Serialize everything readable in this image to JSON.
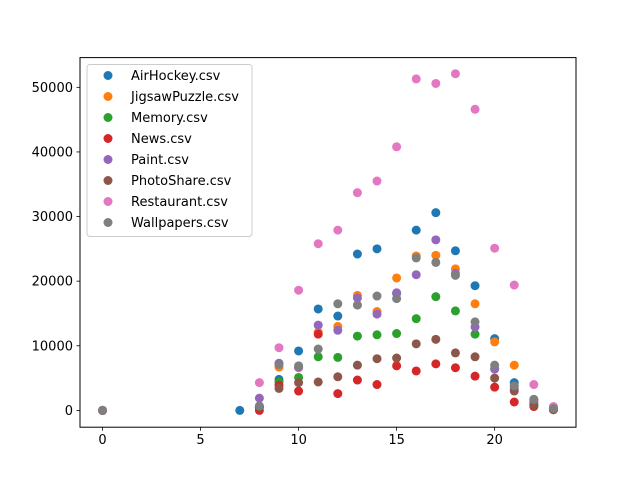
{
  "chart_data": {
    "type": "scatter",
    "title": "",
    "xlabel": "",
    "ylabel": "",
    "xlim": [
      -1.15,
      24.15
    ],
    "ylim": [
      -2600,
      54600
    ],
    "xticks": [
      0,
      5,
      10,
      15,
      20
    ],
    "yticks": [
      0,
      10000,
      20000,
      30000,
      40000,
      50000
    ],
    "grid": false,
    "legend_position": "upper-left",
    "series": [
      {
        "name": "AirHockey.csv",
        "color": "#1f77b4",
        "points": [
          [
            0,
            0
          ],
          [
            7,
            0
          ],
          [
            8,
            500
          ],
          [
            9,
            4800
          ],
          [
            10,
            9200
          ],
          [
            11,
            15700
          ],
          [
            12,
            14600
          ],
          [
            13,
            24200
          ],
          [
            14,
            25000
          ],
          [
            15,
            18100
          ],
          [
            16,
            27900
          ],
          [
            17,
            30600
          ],
          [
            18,
            24700
          ],
          [
            19,
            19300
          ],
          [
            20,
            11100
          ],
          [
            21,
            4300
          ],
          [
            22,
            1700
          ],
          [
            23,
            400
          ]
        ]
      },
      {
        "name": "JigsawPuzzle.csv",
        "color": "#ff7f0e",
        "points": [
          [
            0,
            0
          ],
          [
            8,
            600
          ],
          [
            9,
            6700
          ],
          [
            10,
            6600
          ],
          [
            11,
            12100
          ],
          [
            12,
            13000
          ],
          [
            13,
            17800
          ],
          [
            14,
            15300
          ],
          [
            15,
            20500
          ],
          [
            16,
            23900
          ],
          [
            17,
            24000
          ],
          [
            18,
            21900
          ],
          [
            19,
            16500
          ],
          [
            20,
            10600
          ],
          [
            21,
            7000
          ],
          [
            22,
            1500
          ],
          [
            23,
            400
          ]
        ]
      },
      {
        "name": "Memory.csv",
        "color": "#2ca02c",
        "points": [
          [
            0,
            0
          ],
          [
            8,
            500
          ],
          [
            9,
            4400
          ],
          [
            10,
            5100
          ],
          [
            11,
            8300
          ],
          [
            12,
            8200
          ],
          [
            13,
            11500
          ],
          [
            14,
            11700
          ],
          [
            15,
            11900
          ],
          [
            16,
            14200
          ],
          [
            17,
            17600
          ],
          [
            18,
            15400
          ],
          [
            19,
            11800
          ],
          [
            20,
            6400
          ],
          [
            21,
            3800
          ],
          [
            22,
            900
          ],
          [
            23,
            200
          ]
        ]
      },
      {
        "name": "News.csv",
        "color": "#d62728",
        "points": [
          [
            0,
            0
          ],
          [
            8,
            0
          ],
          [
            9,
            3900
          ],
          [
            10,
            3000
          ],
          [
            11,
            11800
          ],
          [
            12,
            2600
          ],
          [
            13,
            4700
          ],
          [
            14,
            4000
          ],
          [
            15,
            6900
          ],
          [
            16,
            6100
          ],
          [
            17,
            7200
          ],
          [
            18,
            6600
          ],
          [
            19,
            5300
          ],
          [
            20,
            3600
          ],
          [
            21,
            1300
          ],
          [
            22,
            600
          ],
          [
            23,
            100
          ]
        ]
      },
      {
        "name": "Paint.csv",
        "color": "#9467bd",
        "points": [
          [
            0,
            0
          ],
          [
            8,
            1900
          ],
          [
            9,
            7300
          ],
          [
            10,
            6700
          ],
          [
            11,
            13200
          ],
          [
            12,
            12400
          ],
          [
            13,
            17400
          ],
          [
            14,
            14900
          ],
          [
            15,
            18200
          ],
          [
            16,
            21000
          ],
          [
            17,
            26400
          ],
          [
            18,
            21200
          ],
          [
            19,
            12900
          ],
          [
            20,
            6400
          ],
          [
            21,
            3400
          ],
          [
            22,
            1300
          ],
          [
            23,
            300
          ]
        ]
      },
      {
        "name": "PhotoShare.csv",
        "color": "#8c564b",
        "points": [
          [
            0,
            0
          ],
          [
            8,
            500
          ],
          [
            9,
            3400
          ],
          [
            10,
            4300
          ],
          [
            11,
            4400
          ],
          [
            12,
            5200
          ],
          [
            13,
            7000
          ],
          [
            14,
            8000
          ],
          [
            15,
            8100
          ],
          [
            16,
            10300
          ],
          [
            17,
            11000
          ],
          [
            18,
            8900
          ],
          [
            19,
            8300
          ],
          [
            20,
            5000
          ],
          [
            21,
            3000
          ],
          [
            22,
            800
          ],
          [
            23,
            100
          ]
        ]
      },
      {
        "name": "Restaurant.csv",
        "color": "#e377c2",
        "points": [
          [
            0,
            0
          ],
          [
            8,
            4300
          ],
          [
            9,
            9700
          ],
          [
            10,
            18600
          ],
          [
            11,
            25800
          ],
          [
            12,
            27900
          ],
          [
            13,
            33700
          ],
          [
            14,
            35500
          ],
          [
            15,
            40800
          ],
          [
            16,
            51300
          ],
          [
            17,
            50600
          ],
          [
            18,
            52100
          ],
          [
            19,
            46600
          ],
          [
            20,
            25100
          ],
          [
            21,
            19400
          ],
          [
            22,
            4000
          ],
          [
            23,
            600
          ]
        ]
      },
      {
        "name": "Wallpapers.csv",
        "color": "#7f7f7f",
        "points": [
          [
            0,
            0
          ],
          [
            8,
            700
          ],
          [
            9,
            7100
          ],
          [
            10,
            6900
          ],
          [
            11,
            9500
          ],
          [
            12,
            16500
          ],
          [
            13,
            16300
          ],
          [
            14,
            17700
          ],
          [
            15,
            17300
          ],
          [
            16,
            23600
          ],
          [
            17,
            22900
          ],
          [
            18,
            20900
          ],
          [
            19,
            13700
          ],
          [
            20,
            7000
          ],
          [
            21,
            3800
          ],
          [
            22,
            1700
          ],
          [
            23,
            300
          ]
        ]
      }
    ]
  }
}
